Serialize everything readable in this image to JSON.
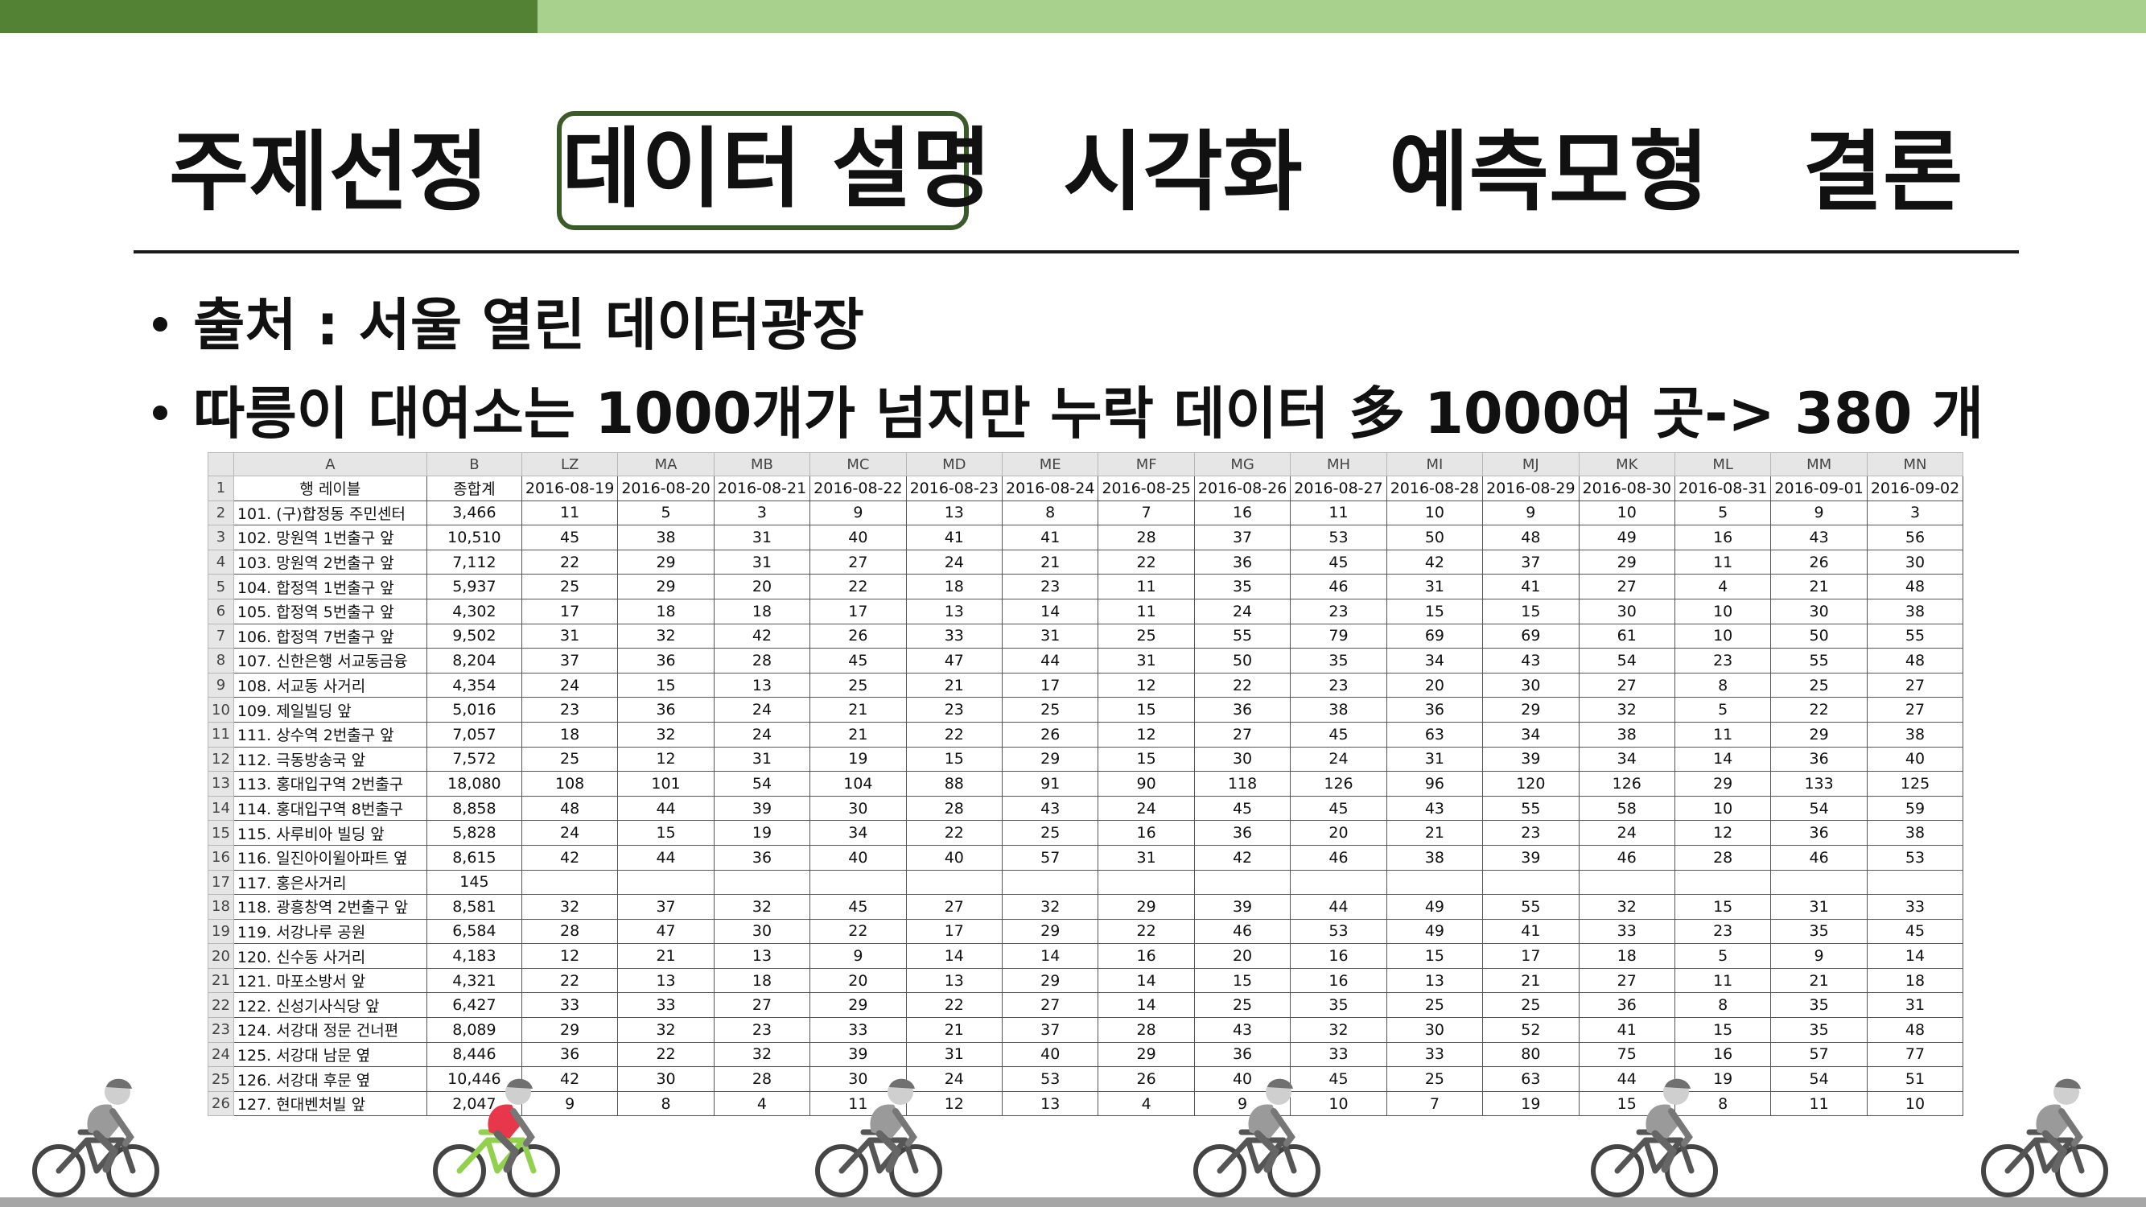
{
  "nav": {
    "items": [
      "주제선정",
      "데이터 설명",
      "시각화",
      "예측모형",
      "결론"
    ],
    "active": "데이터 설명"
  },
  "bullets": [
    "출처 : 서울 열린 데이터광장",
    "따릉이 대여소는 1000개가 넘지만 누락 데이터 多  1000여 곳-> 380 개"
  ],
  "spreadsheet": {
    "col_letters": [
      "A",
      "B",
      "LZ",
      "MA",
      "MB",
      "MC",
      "MD",
      "ME",
      "MF",
      "MG",
      "MH",
      "MI",
      "MJ",
      "MK",
      "ML",
      "MM",
      "MN"
    ],
    "header_row": [
      "1",
      "행 레이블",
      "종합계",
      "2016-08-19",
      "2016-08-20",
      "2016-08-21",
      "2016-08-22",
      "2016-08-23",
      "2016-08-24",
      "2016-08-25",
      "2016-08-26",
      "2016-08-27",
      "2016-08-28",
      "2016-08-29",
      "2016-08-30",
      "2016-08-31",
      "2016-09-01",
      "2016-09-02"
    ],
    "rows": [
      [
        "2",
        "101. (구)합정동 주민센터",
        "3,466",
        "11",
        "5",
        "3",
        "9",
        "13",
        "8",
        "7",
        "16",
        "11",
        "10",
        "9",
        "10",
        "5",
        "9",
        "3"
      ],
      [
        "3",
        "102. 망원역 1번출구 앞",
        "10,510",
        "45",
        "38",
        "31",
        "40",
        "41",
        "41",
        "28",
        "37",
        "53",
        "50",
        "48",
        "49",
        "16",
        "43",
        "56"
      ],
      [
        "4",
        "103. 망원역 2번출구 앞",
        "7,112",
        "22",
        "29",
        "31",
        "27",
        "24",
        "21",
        "22",
        "36",
        "45",
        "42",
        "37",
        "29",
        "11",
        "26",
        "30"
      ],
      [
        "5",
        "104. 합정역 1번출구 앞",
        "5,937",
        "25",
        "29",
        "20",
        "22",
        "18",
        "23",
        "11",
        "35",
        "46",
        "31",
        "41",
        "27",
        "4",
        "21",
        "48"
      ],
      [
        "6",
        "105. 합정역 5번출구 앞",
        "4,302",
        "17",
        "18",
        "18",
        "17",
        "13",
        "14",
        "11",
        "24",
        "23",
        "15",
        "15",
        "30",
        "10",
        "30",
        "38"
      ],
      [
        "7",
        "106. 합정역 7번출구 앞",
        "9,502",
        "31",
        "32",
        "42",
        "26",
        "33",
        "31",
        "25",
        "55",
        "79",
        "69",
        "69",
        "61",
        "10",
        "50",
        "55"
      ],
      [
        "8",
        "107. 신한은행 서교동금융",
        "8,204",
        "37",
        "36",
        "28",
        "45",
        "47",
        "44",
        "31",
        "50",
        "35",
        "34",
        "43",
        "54",
        "23",
        "55",
        "48"
      ],
      [
        "9",
        "108. 서교동 사거리",
        "4,354",
        "24",
        "15",
        "13",
        "25",
        "21",
        "17",
        "12",
        "22",
        "23",
        "20",
        "30",
        "27",
        "8",
        "25",
        "27"
      ],
      [
        "10",
        "109. 제일빌딩 앞",
        "5,016",
        "23",
        "36",
        "24",
        "21",
        "23",
        "25",
        "15",
        "36",
        "38",
        "36",
        "29",
        "32",
        "5",
        "22",
        "27"
      ],
      [
        "11",
        "111. 상수역 2번출구 앞",
        "7,057",
        "18",
        "32",
        "24",
        "21",
        "22",
        "26",
        "12",
        "27",
        "45",
        "63",
        "34",
        "38",
        "11",
        "29",
        "38"
      ],
      [
        "12",
        "112. 극동방송국 앞",
        "7,572",
        "25",
        "12",
        "31",
        "19",
        "15",
        "29",
        "15",
        "30",
        "24",
        "31",
        "39",
        "34",
        "14",
        "36",
        "40"
      ],
      [
        "13",
        "113. 홍대입구역 2번출구",
        "18,080",
        "108",
        "101",
        "54",
        "104",
        "88",
        "91",
        "90",
        "118",
        "126",
        "96",
        "120",
        "126",
        "29",
        "133",
        "125"
      ],
      [
        "14",
        "114. 홍대입구역 8번출구",
        "8,858",
        "48",
        "44",
        "39",
        "30",
        "28",
        "43",
        "24",
        "45",
        "45",
        "43",
        "55",
        "58",
        "10",
        "54",
        "59"
      ],
      [
        "15",
        "115. 사루비아 빌딩 앞",
        "5,828",
        "24",
        "15",
        "19",
        "34",
        "22",
        "25",
        "16",
        "36",
        "20",
        "21",
        "23",
        "24",
        "12",
        "36",
        "38"
      ],
      [
        "16",
        "116. 일진아이윌아파트 옆",
        "8,615",
        "42",
        "44",
        "36",
        "40",
        "40",
        "57",
        "31",
        "42",
        "46",
        "38",
        "39",
        "46",
        "28",
        "46",
        "53"
      ],
      [
        "17",
        "117. 홍은사거리",
        "145",
        "",
        "",
        "",
        "",
        "",
        "",
        "",
        "",
        "",
        "",
        "",
        "",
        "",
        "",
        ""
      ],
      [
        "18",
        "118. 광흥창역 2번출구 앞",
        "8,581",
        "32",
        "37",
        "32",
        "45",
        "27",
        "32",
        "29",
        "39",
        "44",
        "49",
        "55",
        "32",
        "15",
        "31",
        "33"
      ],
      [
        "19",
        "119. 서강나루 공원",
        "6,584",
        "28",
        "47",
        "30",
        "22",
        "17",
        "29",
        "22",
        "46",
        "53",
        "49",
        "41",
        "33",
        "23",
        "35",
        "45"
      ],
      [
        "20",
        "120. 신수동 사거리",
        "4,183",
        "12",
        "21",
        "13",
        "9",
        "14",
        "14",
        "16",
        "20",
        "16",
        "15",
        "17",
        "18",
        "5",
        "9",
        "14"
      ],
      [
        "21",
        "121. 마포소방서 앞",
        "4,321",
        "22",
        "13",
        "18",
        "20",
        "13",
        "29",
        "14",
        "15",
        "16",
        "13",
        "21",
        "27",
        "11",
        "21",
        "18"
      ],
      [
        "22",
        "122. 신성기사식당 앞",
        "6,427",
        "33",
        "33",
        "27",
        "29",
        "22",
        "27",
        "14",
        "25",
        "35",
        "25",
        "25",
        "36",
        "8",
        "35",
        "31"
      ],
      [
        "23",
        "124. 서강대 정문 건너편",
        "8,089",
        "29",
        "32",
        "23",
        "33",
        "21",
        "37",
        "28",
        "43",
        "32",
        "30",
        "52",
        "41",
        "15",
        "35",
        "48"
      ],
      [
        "24",
        "125. 서강대 남문 옆",
        "8,446",
        "36",
        "22",
        "32",
        "39",
        "31",
        "40",
        "29",
        "36",
        "33",
        "33",
        "80",
        "75",
        "16",
        "57",
        "77"
      ],
      [
        "25",
        "126. 서강대 후문 옆",
        "10,446",
        "42",
        "30",
        "28",
        "30",
        "24",
        "53",
        "26",
        "40",
        "45",
        "25",
        "63",
        "44",
        "19",
        "54",
        "51"
      ],
      [
        "26",
        "127. 현대벤처빌 앞",
        "2,047",
        "9",
        "8",
        "4",
        "11",
        "12",
        "13",
        "4",
        "9",
        "10",
        "7",
        "19",
        "15",
        "8",
        "11",
        "10"
      ]
    ]
  },
  "colors": {
    "top_bar_dark": "#548235",
    "top_bar_light": "#a9d18e",
    "active_border": "#3b5a29",
    "rider_highlight": "#e8364a",
    "bike_highlight": "#92d050"
  },
  "icons": [
    "cyclist-icon"
  ]
}
